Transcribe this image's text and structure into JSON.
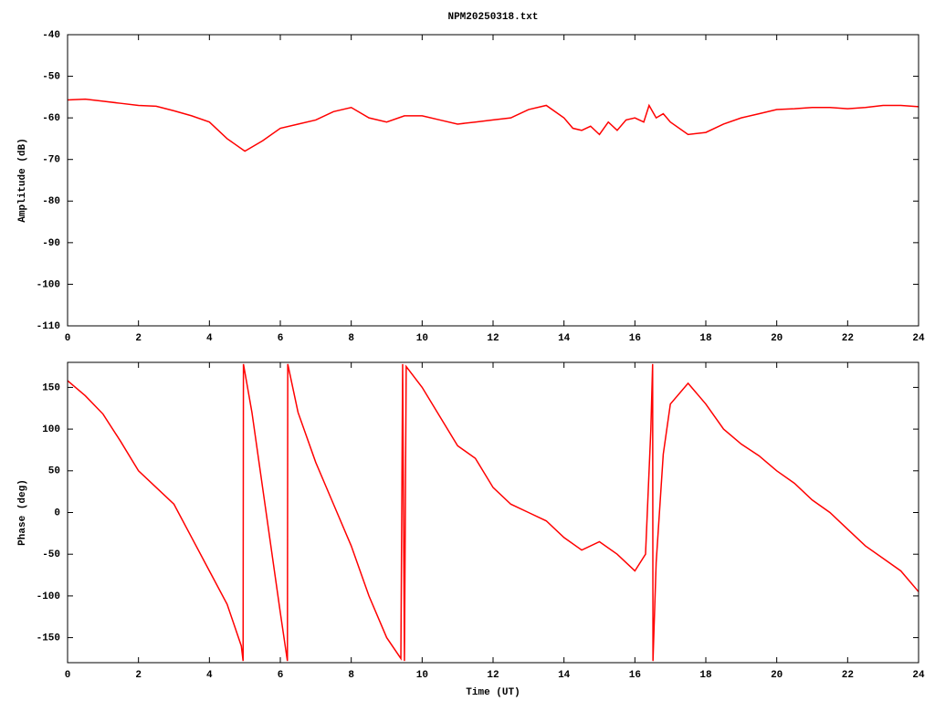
{
  "chart_data": [
    {
      "type": "line",
      "title": "NPM20250318.txt",
      "ylabel": "Amplitude (dB)",
      "color": "#ff0000",
      "x": [
        0,
        0.5,
        1,
        1.5,
        2,
        2.5,
        3,
        3.5,
        4,
        4.5,
        5,
        5.5,
        6,
        6.5,
        7,
        7.5,
        8,
        8.5,
        9,
        9.5,
        10,
        10.5,
        11,
        11.5,
        12,
        12.5,
        13,
        13.5,
        14,
        14.25,
        14.5,
        14.75,
        15,
        15.25,
        15.5,
        15.75,
        16,
        16.25,
        16.4,
        16.6,
        16.8,
        17,
        17.5,
        18,
        18.5,
        19,
        19.5,
        20,
        20.5,
        21,
        21.5,
        22,
        22.5,
        23,
        23.5,
        24
      ],
      "values": [
        -55.7,
        -55.5,
        -56,
        -56.5,
        -57,
        -57.2,
        -58.3,
        -59.5,
        -61,
        -65,
        -68,
        -65.5,
        -62.5,
        -61.5,
        -60.5,
        -58.5,
        -57.5,
        -60,
        -61,
        -59.5,
        -59.5,
        -60.5,
        -61.5,
        -61,
        -60.5,
        -60,
        -58,
        -57,
        -60,
        -62.5,
        -63,
        -62,
        -64,
        -61,
        -63,
        -60.5,
        -60,
        -61,
        -57,
        -60,
        -59,
        -61,
        -64,
        -63.5,
        -61.5,
        -60,
        -59,
        -58,
        -57.8,
        -57.5,
        -57.5,
        -57.8,
        -57.5,
        -57,
        -57,
        -57.3
      ],
      "xlim": [
        0,
        24
      ],
      "xticks": [
        0,
        2,
        4,
        6,
        8,
        10,
        12,
        14,
        16,
        18,
        20,
        22,
        24
      ],
      "ylim": [
        -110,
        -40
      ],
      "yticks": [
        -40,
        -50,
        -60,
        -70,
        -80,
        -90,
        -100,
        -110
      ]
    },
    {
      "type": "line",
      "xlabel": "Time (UT)",
      "ylabel": "Phase (deg)",
      "color": "#ff0000",
      "x": [
        0,
        0.5,
        1,
        1.5,
        2,
        2.5,
        3,
        3.5,
        4,
        4.5,
        4.9,
        4.95,
        4.96,
        5.2,
        5.5,
        6,
        6.2,
        6.21,
        6.5,
        7,
        7.5,
        8,
        8.5,
        9,
        9.4,
        9.45,
        9.5,
        9.55,
        10,
        10.5,
        11,
        11.5,
        12,
        12.5,
        13,
        13.5,
        14,
        14.5,
        15,
        15.5,
        16,
        16.3,
        16.45,
        16.5,
        16.51,
        16.6,
        16.8,
        17,
        17.5,
        18,
        18.5,
        19,
        19.5,
        20,
        20.5,
        21,
        21.5,
        22,
        22.5,
        23,
        23.5,
        24
      ],
      "values": [
        158,
        140,
        118,
        85,
        50,
        30,
        10,
        -30,
        -70,
        -110,
        -160,
        -178,
        178,
        120,
        30,
        -120,
        -178,
        178,
        120,
        60,
        10,
        -40,
        -100,
        -150,
        -175,
        178,
        -178,
        175,
        150,
        115,
        80,
        65,
        30,
        10,
        0,
        -10,
        -30,
        -45,
        -35,
        -50,
        -70,
        -50,
        100,
        178,
        -178,
        -60,
        70,
        130,
        155,
        130,
        100,
        82,
        68,
        50,
        35,
        15,
        0,
        -20,
        -40,
        -55,
        -70,
        -95
      ],
      "xlim": [
        0,
        24
      ],
      "xticks": [
        0,
        2,
        4,
        6,
        8,
        10,
        12,
        14,
        16,
        18,
        20,
        22,
        24
      ],
      "ylim": [
        -180,
        180
      ],
      "yticks": [
        150,
        100,
        50,
        0,
        -50,
        -100,
        -150
      ]
    }
  ]
}
